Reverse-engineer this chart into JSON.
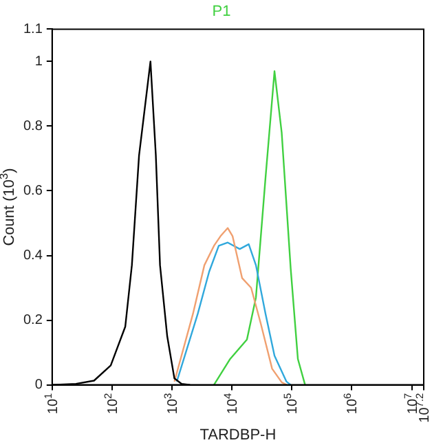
{
  "chart_data": {
    "type": "line",
    "title": "P1",
    "xlabel": "TARDBP-H",
    "ylabel": "Count (10$^{3}$)",
    "log": "x",
    "grid": false,
    "legend": false,
    "marker": "none",
    "line_style": "solid",
    "xlim": [
      10,
      15848932
    ],
    "xticks": [
      {
        "value": 10,
        "label": "10$^{1}$"
      },
      {
        "value": 100,
        "label": "10$^{2}$"
      },
      {
        "value": 1000,
        "label": "10$^{3}$"
      },
      {
        "value": 10000,
        "label": "10$^{4}$"
      },
      {
        "value": 100000,
        "label": "10$^{5}$"
      },
      {
        "value": 1000000,
        "label": "10$^{6}$"
      },
      {
        "value": 10000000,
        "label": "10$^{7}$"
      },
      {
        "value": 15848932,
        "label": "10$^{7.2}$"
      }
    ],
    "ylim": [
      0,
      1.1
    ],
    "yticks": [
      0,
      0.2,
      0.4,
      0.6,
      0.8,
      1,
      1.1
    ],
    "series": [
      {
        "color": "#000000",
        "x": [
          10,
          25,
          50,
          95,
          166,
          214,
          282,
          437,
          537,
          631,
          832,
          1096,
          1445,
          2000
        ],
        "values": [
          0,
          0.003,
          0.013,
          0.06,
          0.18,
          0.37,
          0.71,
          1.0,
          0.71,
          0.37,
          0.15,
          0.02,
          0.003,
          0
        ]
      },
      {
        "color": "#f0a070",
        "x": [
          1096,
          2239,
          3467,
          5012,
          6457,
          8511,
          10233,
          14791,
          20893,
          30200,
          46774,
          67608,
          81283
        ],
        "values": [
          0.01,
          0.22,
          0.37,
          0.43,
          0.46,
          0.485,
          0.46,
          0.33,
          0.3,
          0.19,
          0.05,
          0.008,
          0
        ]
      },
      {
        "color": "#30a8dc",
        "x": [
          1202,
          2692,
          4169,
          6026,
          8511,
          13490,
          19055,
          25119,
          36308,
          51286,
          81283,
          95499
        ],
        "values": [
          0.01,
          0.22,
          0.35,
          0.43,
          0.44,
          0.42,
          0.435,
          0.37,
          0.22,
          0.09,
          0.01,
          0
        ]
      },
      {
        "color": "#40d040",
        "x": [
          5012,
          9333,
          17783,
          25119,
          36308,
          51286,
          67608,
          95499,
          125893,
          165959
        ],
        "values": [
          0,
          0.08,
          0.14,
          0.27,
          0.64,
          0.97,
          0.78,
          0.36,
          0.08,
          0
        ]
      }
    ]
  }
}
